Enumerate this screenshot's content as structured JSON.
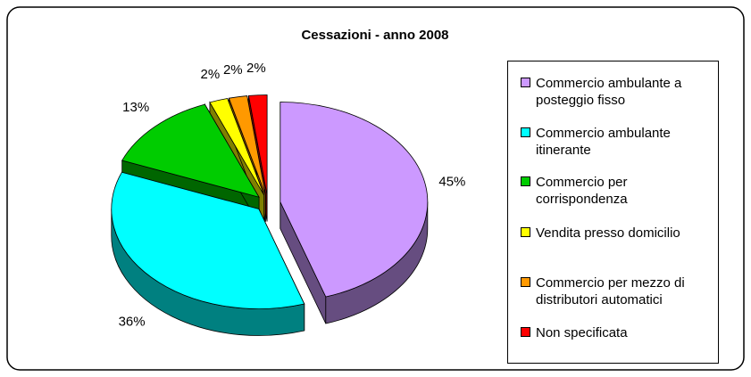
{
  "chart_data": {
    "type": "pie",
    "title": "Cessazioni - anno 2008",
    "categories": [
      "Commercio ambulante a posteggio fisso",
      "Commercio ambulante itinerante",
      "Commercio per corrispondenza",
      "Vendita presso domicilio",
      "Commercio per mezzo di distributori automatici",
      "Non specificata"
    ],
    "values": [
      45,
      36,
      13,
      2,
      2,
      2
    ],
    "value_labels": [
      "45%",
      "36%",
      "13%",
      "2%",
      "2%",
      "2%"
    ],
    "colors": [
      "#cc99ff",
      "#00ffff",
      "#00cc00",
      "#ffff00",
      "#ff9900",
      "#ff0000"
    ],
    "legend": "right"
  }
}
